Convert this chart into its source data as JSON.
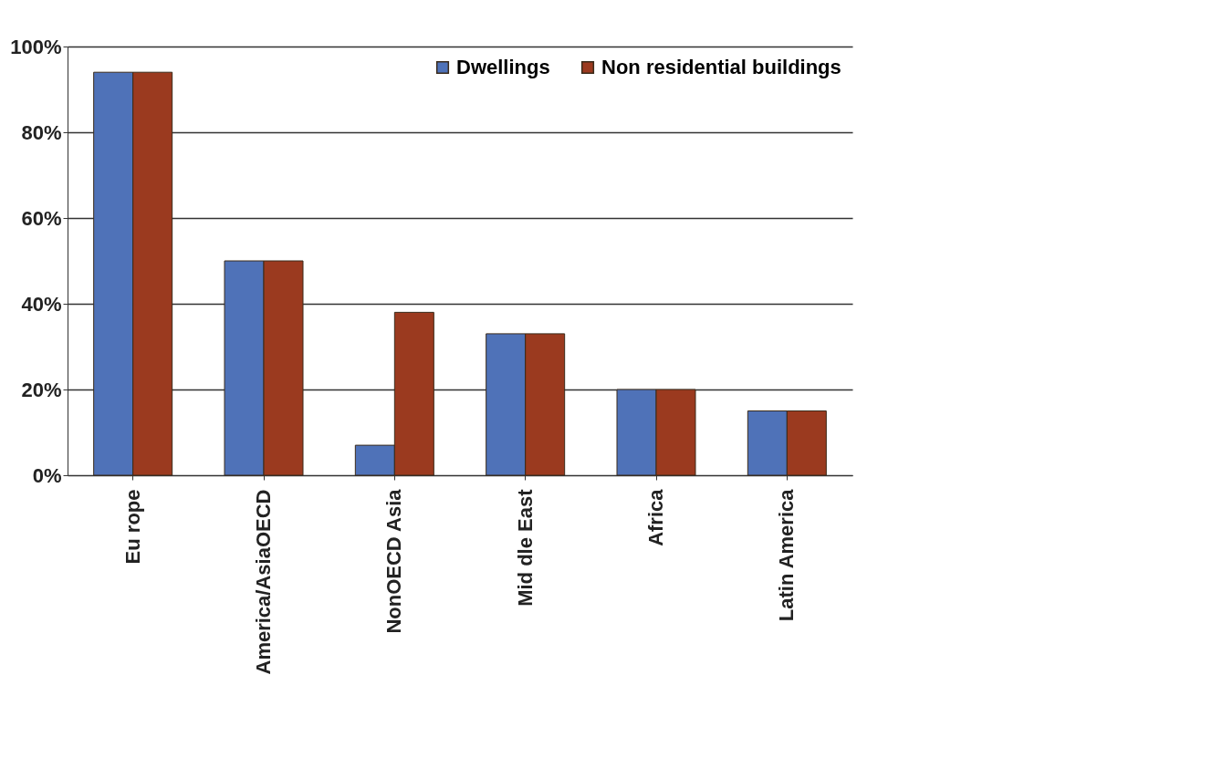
{
  "chart_data": {
    "type": "bar",
    "categories": [
      "Eu rope",
      "America/AsiaOECD",
      "NonOECD Asia",
      "Mid dle East",
      "Africa",
      "Latin America"
    ],
    "series": [
      {
        "name": "Dwellings",
        "color": "#4f72b8",
        "values": [
          94,
          50,
          7,
          33,
          20,
          15
        ]
      },
      {
        "name": "Non residential buildings",
        "color": "#9b3a1f",
        "values": [
          94,
          50,
          38,
          33,
          20,
          15
        ]
      }
    ],
    "ylim": [
      0,
      100
    ],
    "yticks": [
      {
        "value": 0,
        "label": "0%"
      },
      {
        "value": 20,
        "label": "20%"
      },
      {
        "value": 40,
        "label": "40%"
      },
      {
        "value": 60,
        "label": "60%"
      },
      {
        "value": 80,
        "label": "80%"
      },
      {
        "value": 100,
        "label": "100%"
      }
    ],
    "grid": "y",
    "legend": "top right"
  }
}
